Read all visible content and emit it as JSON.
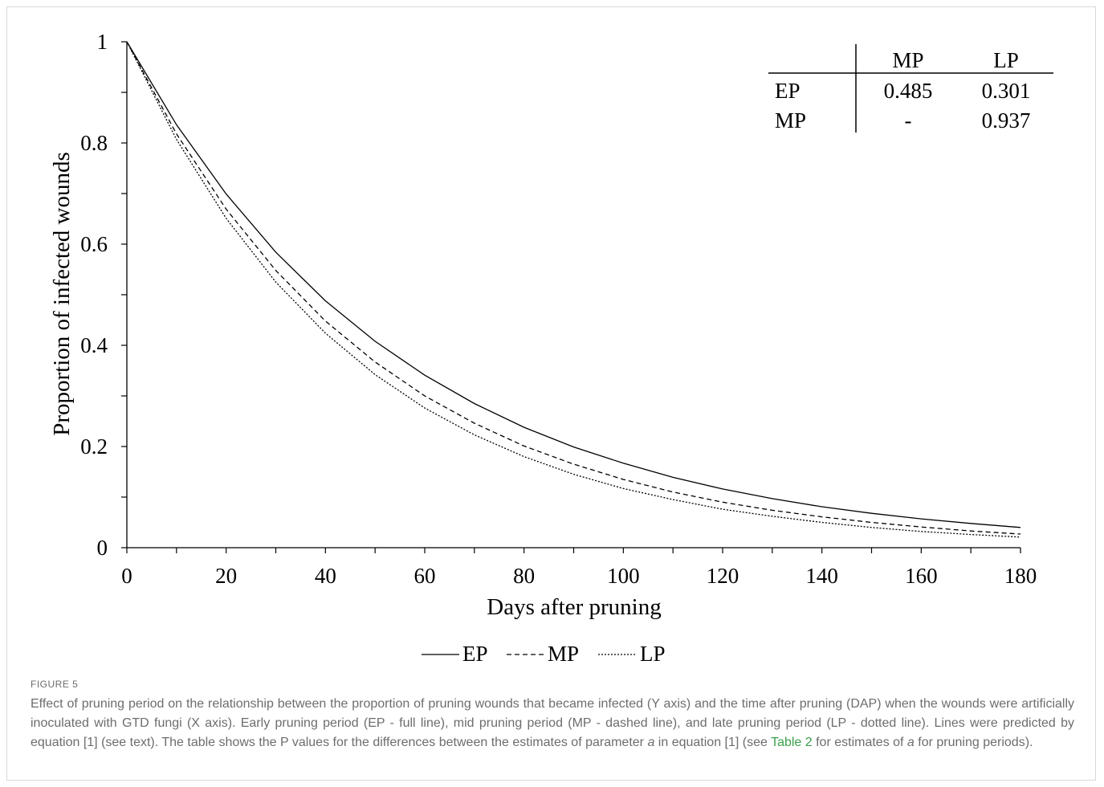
{
  "chart_data": {
    "type": "line",
    "xlabel": "Days after pruning",
    "ylabel": "Proportion of infected wounds",
    "xlim": [
      0,
      180
    ],
    "ylim": [
      0,
      1
    ],
    "x_ticks": [
      "0",
      "20",
      "40",
      "60",
      "80",
      "100",
      "120",
      "140",
      "160",
      "180"
    ],
    "y_ticks": [
      "0",
      "0.2",
      "0.4",
      "0.6",
      "0.8",
      "1"
    ],
    "x": [
      0,
      10,
      20,
      30,
      40,
      50,
      60,
      70,
      80,
      90,
      100,
      110,
      120,
      130,
      140,
      150,
      160,
      170,
      180
    ],
    "series": [
      {
        "name": "EP",
        "style": "solid",
        "color": "#000000",
        "values": [
          1,
          0.836,
          0.699,
          0.584,
          0.488,
          0.408,
          0.341,
          0.285,
          0.238,
          0.199,
          0.167,
          0.139,
          0.116,
          0.097,
          0.081,
          0.068,
          0.057,
          0.048,
          0.04
        ]
      },
      {
        "name": "MP",
        "style": "dashed",
        "color": "#000000",
        "values": [
          1,
          0.818,
          0.669,
          0.548,
          0.448,
          0.367,
          0.3,
          0.246,
          0.201,
          0.165,
          0.135,
          0.11,
          0.09,
          0.074,
          0.061,
          0.05,
          0.041,
          0.033,
          0.027
        ]
      },
      {
        "name": "LP",
        "style": "dotted",
        "color": "#000000",
        "values": [
          1,
          0.807,
          0.651,
          0.525,
          0.424,
          0.342,
          0.276,
          0.223,
          0.18,
          0.145,
          0.117,
          0.095,
          0.076,
          0.062,
          0.05,
          0.04,
          0.032,
          0.026,
          0.021
        ]
      }
    ],
    "legend_position": "bottom-center",
    "inset_table": {
      "columns": [
        "MP",
        "LP"
      ],
      "rows": [
        {
          "label": "EP",
          "cells": [
            "0.485",
            "0.301"
          ]
        },
        {
          "label": "MP",
          "cells": [
            "-",
            "0.937"
          ]
        }
      ]
    }
  },
  "caption": {
    "figure_label": "FIGURE 5",
    "text_1": "Effect of pruning period on the relationship between the proportion of pruning wounds that became infected (Y axis) and the time after pruning (DAP) when the wounds were artificially inoculated with GTD fungi (X axis). Early pruning period (EP - full line), mid pruning period (MP - dashed line), and late pruning period (LP - dotted line). Lines were predicted by equation [1] (see text). The table shows the P values for the differences between the estimates of parameter ",
    "param_a": "a",
    "text_2": " in equation [1] (see ",
    "link": "Table 2",
    "text_3": " for estimates of ",
    "param_a2": "a",
    "text_4": " for pruning periods)."
  },
  "colors": {
    "caption_text": "#6d6d6d",
    "link": "#3aa04a",
    "frame_border": "#d8d8d8"
  }
}
